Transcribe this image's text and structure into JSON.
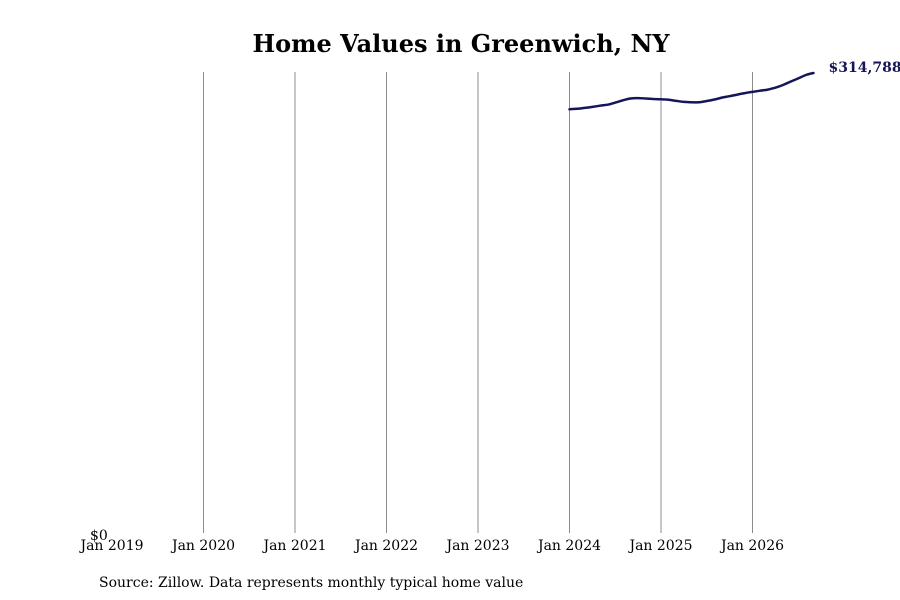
{
  "chart_data": {
    "type": "line",
    "title": "Home Values in Greenwich, NY",
    "xlabel": "",
    "ylabel": "",
    "x_ticks": [
      "Jan 2019",
      "Jan 2020",
      "Jan 2021",
      "Jan 2022",
      "Jan 2023",
      "Jan 2024",
      "Jan 2025",
      "Jan 2026"
    ],
    "y_tick_label": "$0",
    "ylim": [
      0,
      314788
    ],
    "grid": "vertical",
    "series": [
      {
        "color": "#15155a",
        "end_label": "$314,788",
        "points": [
          [
            "2024-01",
            290100
          ],
          [
            "2024-02",
            290400
          ],
          [
            "2024-03",
            291000
          ],
          [
            "2024-04",
            291700
          ],
          [
            "2024-05",
            292500
          ],
          [
            "2024-06",
            293200
          ],
          [
            "2024-07",
            294600
          ],
          [
            "2024-08",
            296200
          ],
          [
            "2024-09",
            297400
          ],
          [
            "2024-10",
            297700
          ],
          [
            "2024-11",
            297400
          ],
          [
            "2024-12",
            297100
          ],
          [
            "2025-01",
            296900
          ],
          [
            "2025-02",
            296600
          ],
          [
            "2025-03",
            295800
          ],
          [
            "2025-04",
            295100
          ],
          [
            "2025-05",
            294800
          ],
          [
            "2025-06",
            294900
          ],
          [
            "2025-07",
            295700
          ],
          [
            "2025-08",
            296700
          ],
          [
            "2025-09",
            298000
          ],
          [
            "2025-10",
            299000
          ],
          [
            "2025-11",
            300100
          ],
          [
            "2025-12",
            301100
          ],
          [
            "2026-01",
            301900
          ],
          [
            "2026-02",
            302700
          ],
          [
            "2026-03",
            303500
          ],
          [
            "2026-04",
            304800
          ],
          [
            "2026-05",
            306600
          ],
          [
            "2026-06",
            308900
          ],
          [
            "2026-07",
            311100
          ],
          [
            "2026-08",
            313400
          ],
          [
            "2026-09",
            314788
          ]
        ]
      }
    ]
  },
  "footer": {
    "source": "Source: Zillow. Data represents monthly typical home value"
  }
}
